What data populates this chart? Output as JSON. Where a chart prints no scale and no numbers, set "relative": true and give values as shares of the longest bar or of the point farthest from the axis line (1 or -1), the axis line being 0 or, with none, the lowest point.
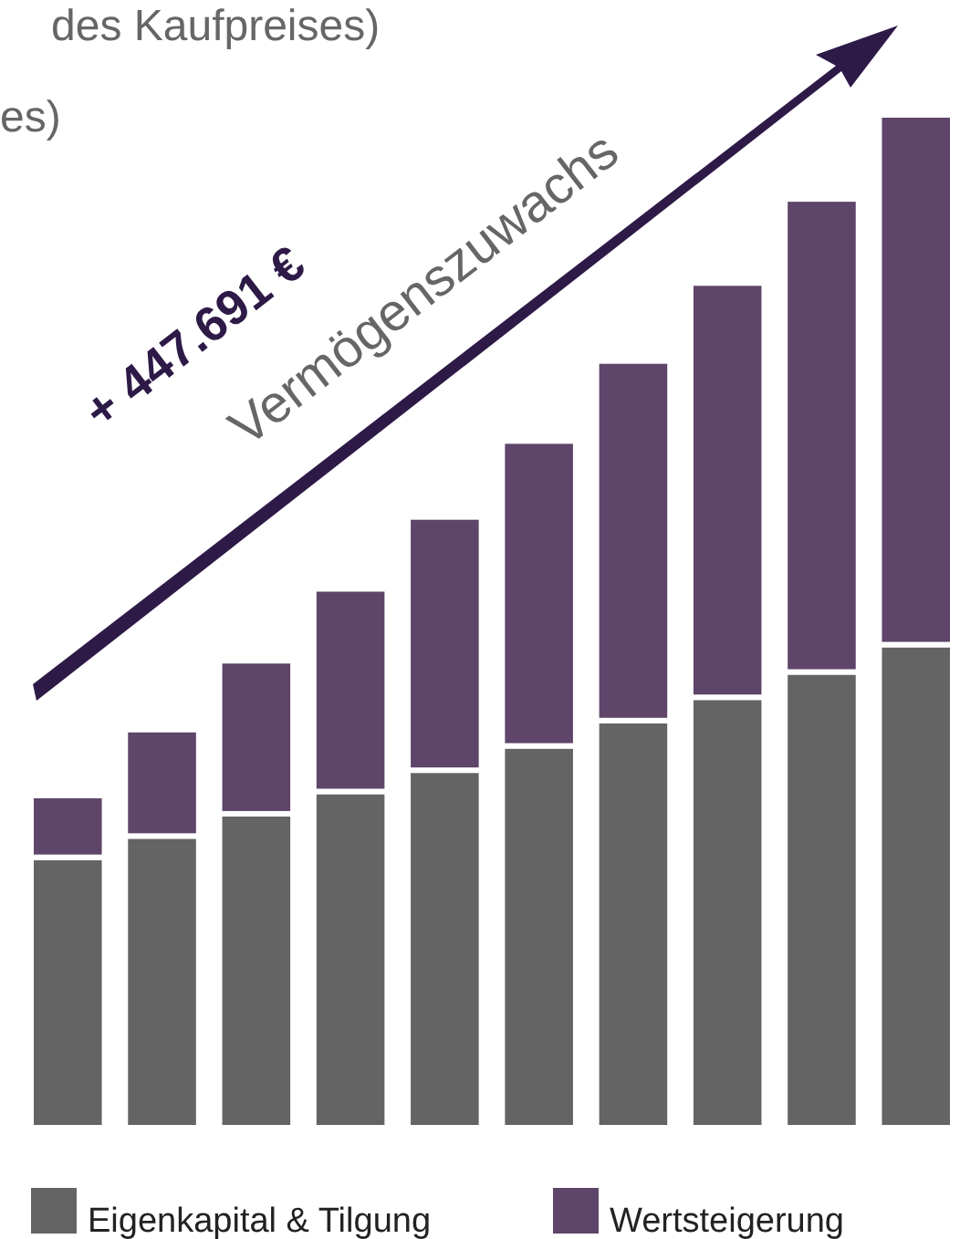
{
  "chart_data": {
    "type": "bar",
    "stacked": true,
    "relative": true,
    "categories": [
      null,
      null,
      null,
      null,
      null,
      null,
      null,
      null,
      null,
      null
    ],
    "series": [
      {
        "name": "Eigenkapital & Tilgung",
        "color": "#646464",
        "values": [
          0.267,
          0.288,
          0.31,
          0.332,
          0.353,
          0.377,
          0.402,
          0.425,
          0.45,
          0.477
        ]
      },
      {
        "name": "Wertsteigerung",
        "color": "#5e4569",
        "values": [
          0.061,
          0.105,
          0.151,
          0.2,
          0.25,
          0.301,
          0.355,
          0.409,
          0.467,
          0.523
        ]
      }
    ],
    "legend": "bottom",
    "annotations": [
      "des Kaufpreises)",
      "es)",
      "+ 447.691 €",
      "Vermögenszuwachs"
    ]
  }
}
